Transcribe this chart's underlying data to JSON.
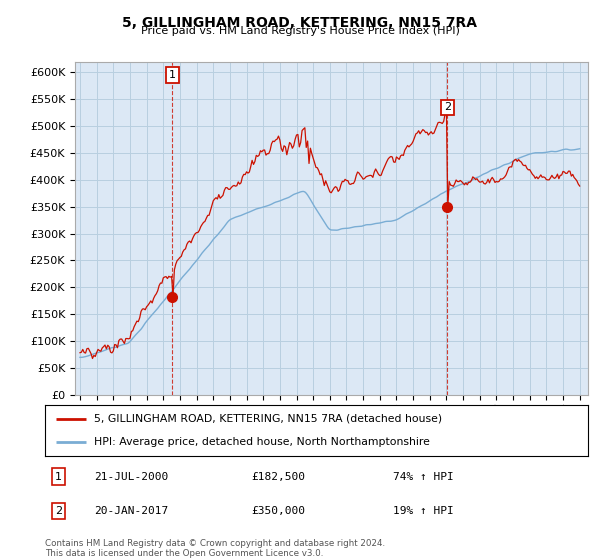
{
  "title": "5, GILLINGHAM ROAD, KETTERING, NN15 7RA",
  "subtitle": "Price paid vs. HM Land Registry's House Price Index (HPI)",
  "ytick_values": [
    0,
    50000,
    100000,
    150000,
    200000,
    250000,
    300000,
    350000,
    400000,
    450000,
    500000,
    550000,
    600000
  ],
  "ylim": [
    0,
    620000
  ],
  "hpi_color": "#7aadd4",
  "price_color": "#cc1100",
  "vline_color": "#cc1100",
  "sale1_year": 2000.55,
  "sale1_price": 182500,
  "sale2_year": 2017.05,
  "sale2_price": 350000,
  "legend_line1": "5, GILLINGHAM ROAD, KETTERING, NN15 7RA (detached house)",
  "legend_line2": "HPI: Average price, detached house, North Northamptonshire",
  "annotation1_date": "21-JUL-2000",
  "annotation1_price": "£182,500",
  "annotation1_pct": "74% ↑ HPI",
  "annotation2_date": "20-JAN-2017",
  "annotation2_price": "£350,000",
  "annotation2_pct": "19% ↑ HPI",
  "footer": "Contains HM Land Registry data © Crown copyright and database right 2024.\nThis data is licensed under the Open Government Licence v3.0.",
  "bg_color": "#ffffff",
  "plot_bg_color": "#dce8f5",
  "grid_color": "#b8cfe0"
}
